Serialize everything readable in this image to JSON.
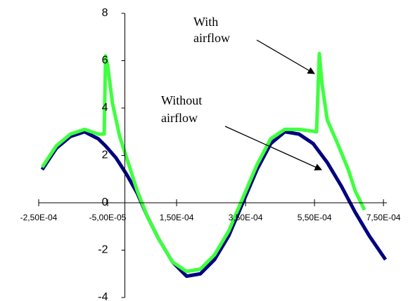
{
  "chart_data": {
    "type": "line",
    "annotations": [
      {
        "lines": [
          "With",
          "airflow"
        ]
      },
      {
        "lines": [
          "Without",
          "airflow"
        ]
      }
    ],
    "xlim": [
      -0.00025,
      0.00076
    ],
    "xticks": [
      {
        "value": -0.00025,
        "label": "-2,50E-04"
      },
      {
        "value": -5e-05,
        "label": "-5,00E-05"
      },
      {
        "value": 0.00015,
        "label": "1,50E-04"
      },
      {
        "value": 0.00035,
        "label": "3,50E-04"
      },
      {
        "value": 0.00055,
        "label": "5,50E-04"
      },
      {
        "value": 0.00075,
        "label": "7,50E-04"
      }
    ],
    "ylim": [
      -4,
      8
    ],
    "yticks": [
      -4,
      -2,
      0,
      2,
      4,
      6,
      8
    ],
    "grid": false,
    "series": [
      {
        "color": "#000080",
        "x": [
          -0.00024,
          -0.000199,
          -0.000158,
          -0.000117,
          -7.7e-05,
          -5.6e-05,
          -2.6e-05,
          5e-06,
          3.6e-05,
          6.6e-05,
          9.7e-05,
          0.000138,
          0.000179,
          0.000219,
          0.00026,
          0.000301,
          0.000342,
          0.000383,
          0.000423,
          0.000464,
          0.000505,
          0.000546,
          0.000587,
          0.000628,
          0.000668,
          0.000709,
          0.000756
        ],
        "values": [
          1.4,
          2.3,
          2.8,
          3.0,
          2.7,
          2.4,
          1.9,
          1.2,
          0.4,
          -0.6,
          -1.5,
          -2.5,
          -3.1,
          -3.0,
          -2.4,
          -1.4,
          0.0,
          1.4,
          2.5,
          3.0,
          2.9,
          2.5,
          1.7,
          0.7,
          -0.4,
          -1.4,
          -2.4
        ]
      },
      {
        "color": "#40ff40",
        "x": [
          -0.00024,
          -0.000199,
          -0.000158,
          -0.000117,
          -7.7e-05,
          -6e-05,
          -5.6e-05,
          -5e-05,
          -3.6e-05,
          -1.5e-05,
          5e-06,
          3.6e-05,
          6.6e-05,
          9.7e-05,
          0.000138,
          0.000179,
          0.000219,
          0.00026,
          0.000301,
          0.000342,
          0.000383,
          0.000423,
          0.000464,
          0.000505,
          0.000556,
          0.000564,
          0.000572,
          0.000587,
          0.000617,
          0.000648,
          0.000668,
          0.000695
        ],
        "values": [
          1.5,
          2.4,
          2.9,
          3.1,
          2.9,
          2.9,
          6.2,
          5.8,
          4.2,
          2.8,
          1.9,
          0.5,
          -0.6,
          -1.5,
          -2.5,
          -2.9,
          -2.8,
          -2.2,
          -1.2,
          0.2,
          1.6,
          2.7,
          3.1,
          3.1,
          3.0,
          6.3,
          5.0,
          3.5,
          2.5,
          1.4,
          0.5,
          -0.3
        ]
      }
    ]
  }
}
